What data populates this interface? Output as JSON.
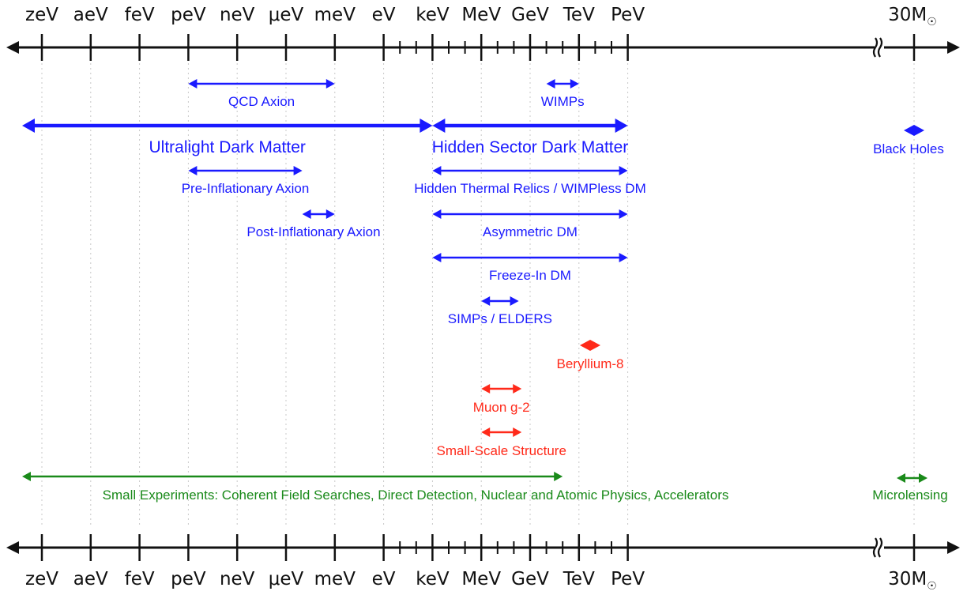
{
  "scale": {
    "major_labels": [
      "zeV",
      "aeV",
      "feV",
      "peV",
      "neV",
      "μeV",
      "meV",
      "eV",
      "keV",
      "MeV",
      "GeV",
      "TeV",
      "PeV"
    ],
    "solar_mass_label": "30M",
    "solar_mass_symbol": "☉"
  },
  "colors": {
    "axis": "#111111",
    "grid": "#c8c8c8",
    "dark_matter": "#1a1aff",
    "anomaly": "#ff2a1a",
    "experiment": "#1a8a1a"
  },
  "ranges": [
    {
      "label": "QCD Axion",
      "color_key": "dark_matter",
      "from_eV": 1e-12,
      "to_eV": 0.001,
      "style": "thin"
    },
    {
      "label": "WIMPs",
      "color_key": "dark_matter",
      "from_eV": 10000000000.0,
      "to_eV": 1000000000000.0,
      "style": "thin"
    },
    {
      "label": "Ultralight Dark Matter",
      "color_key": "dark_matter",
      "from_eV": 1e-22,
      "to_eV": 1000,
      "style": "thick"
    },
    {
      "label": "Hidden Sector Dark Matter",
      "color_key": "dark_matter",
      "from_eV": 1000,
      "to_eV": 1000000000000000.0,
      "style": "thick"
    },
    {
      "label": "Black Holes",
      "color_key": "dark_matter",
      "at": "solar_mass",
      "style": "diamond"
    },
    {
      "label": "Pre-Inflationary Axion",
      "color_key": "dark_matter",
      "from_eV": 1e-12,
      "to_eV": 1e-05,
      "style": "thin"
    },
    {
      "label": "Hidden Thermal Relics / WIMPless DM",
      "color_key": "dark_matter",
      "from_eV": 1000,
      "to_eV": 1000000000000000.0,
      "style": "thin"
    },
    {
      "label": "Post-Inflationary Axion",
      "color_key": "dark_matter",
      "from_eV": 1e-05,
      "to_eV": 0.001,
      "style": "thin"
    },
    {
      "label": "Asymmetric DM",
      "color_key": "dark_matter",
      "from_eV": 1000,
      "to_eV": 1000000000000000.0,
      "style": "thin"
    },
    {
      "label": "Freeze-In DM",
      "color_key": "dark_matter",
      "from_eV": 1000,
      "to_eV": 1000000000000000.0,
      "style": "thin"
    },
    {
      "label": "SIMPs / ELDERS",
      "color_key": "dark_matter",
      "from_eV": 1000000.0,
      "to_eV": 200000000.0,
      "style": "thin"
    },
    {
      "label": "Beryllium-8",
      "color_key": "anomaly",
      "at_eV": 17000000.0,
      "style": "diamond"
    },
    {
      "label": "Muon g-2",
      "color_key": "anomaly",
      "from_eV": 1000000.0,
      "to_eV": 300000000.0,
      "style": "thin"
    },
    {
      "label": "Small-Scale Structure",
      "color_key": "anomaly",
      "from_eV": 1000000.0,
      "to_eV": 300000000.0,
      "style": "thin"
    },
    {
      "label": "Small Experiments: Coherent Field Searches, Direct Detection, Nuclear and Atomic Physics, Accelerators",
      "color_key": "experiment",
      "from_eV": 1e-22,
      "to_eV": 100000000000.0,
      "style": "thin"
    },
    {
      "label": "Microlensing",
      "color_key": "experiment",
      "at": "solar_mass_band",
      "style": "thin"
    }
  ]
}
